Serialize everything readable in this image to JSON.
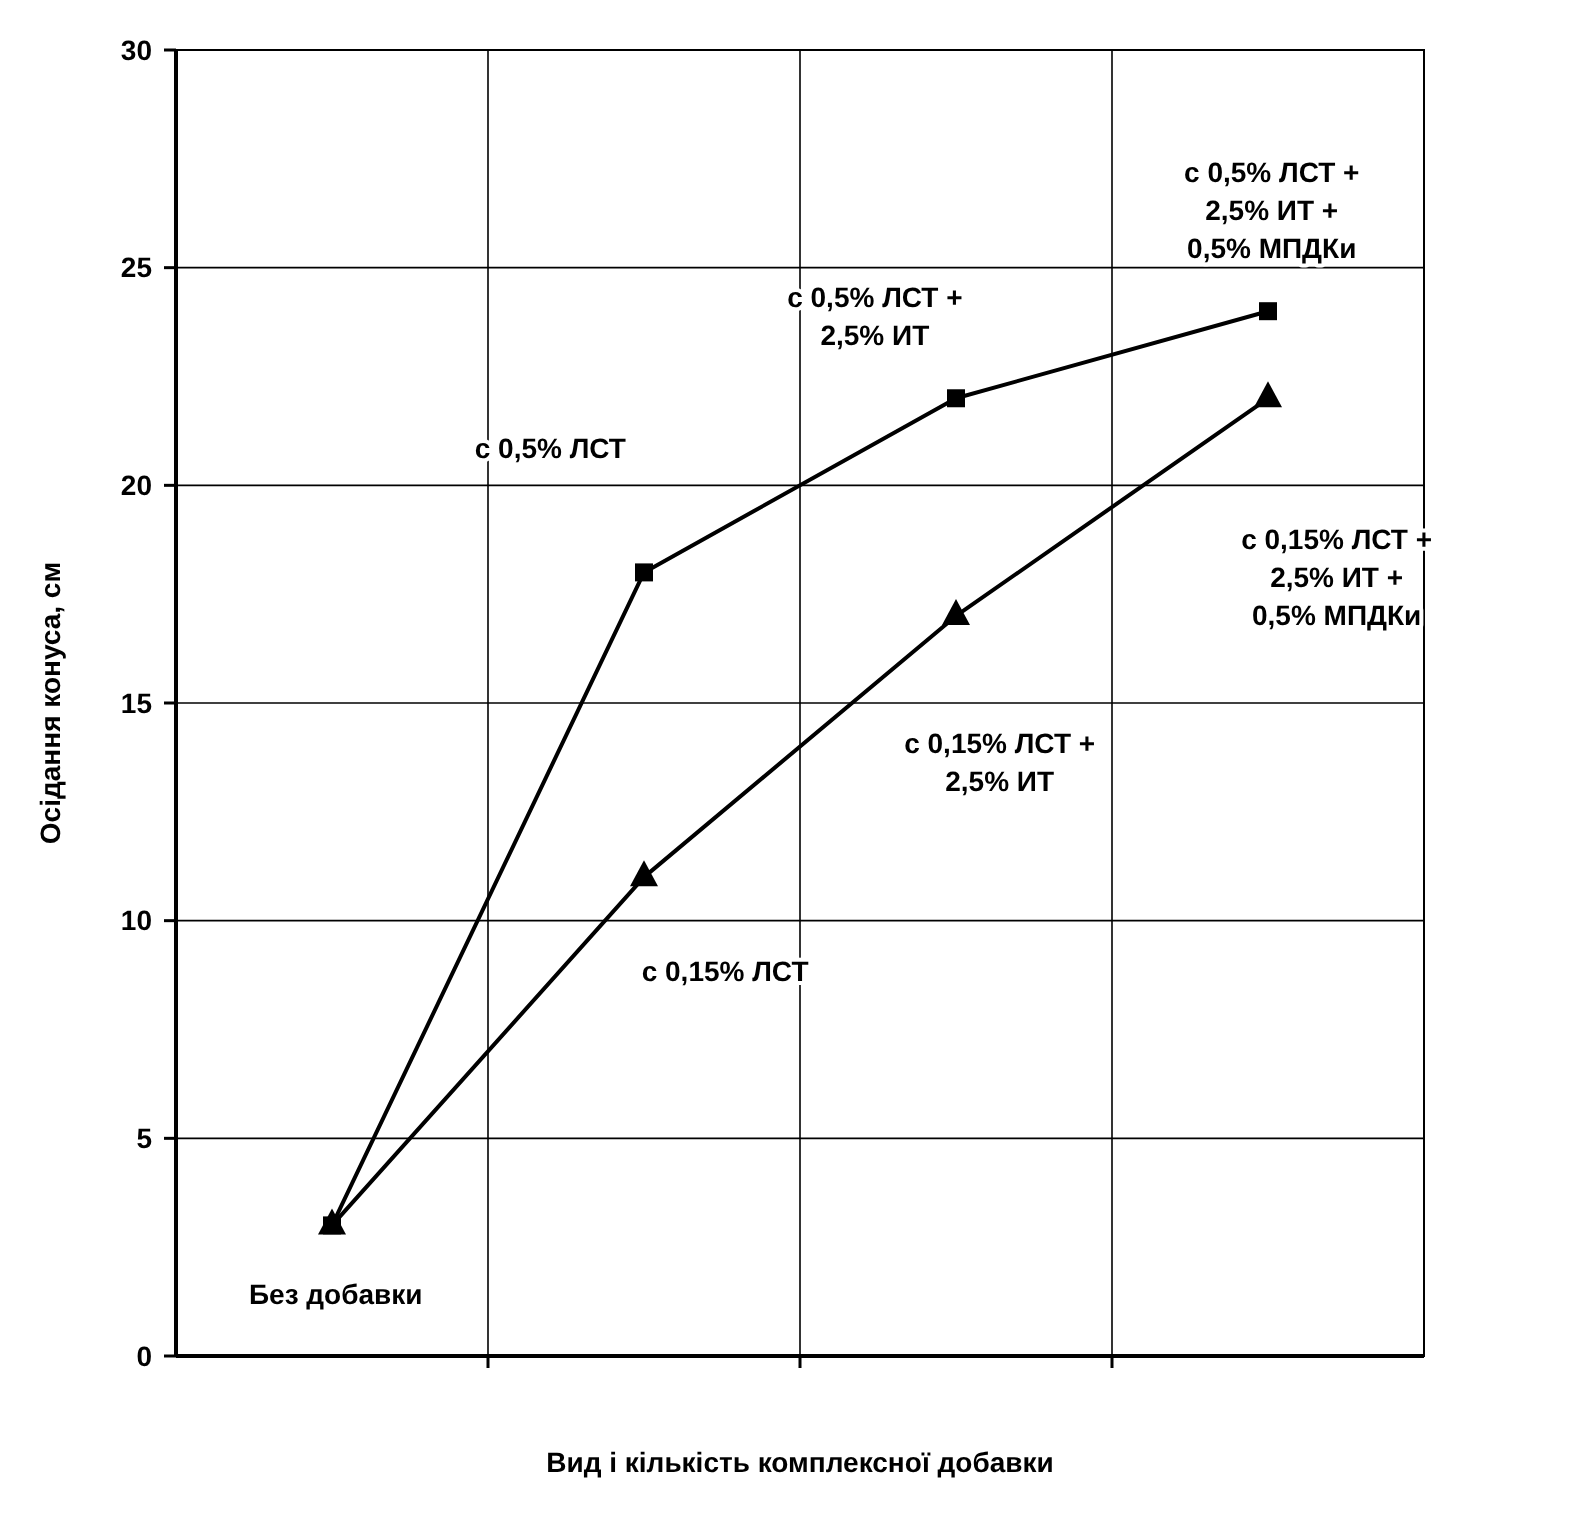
{
  "chart_data": {
    "type": "line",
    "xlabel": "Вид і кількість комплексної добавки",
    "ylabel": "Осідання конуса, см",
    "categories": [
      null,
      null,
      null,
      null
    ],
    "series": [
      {
        "color": "#000000",
        "marker": "square",
        "values": [
          3,
          18,
          22,
          24
        ]
      },
      {
        "color": "#000000",
        "marker": "triangle",
        "values": [
          3,
          11,
          17,
          22
        ]
      }
    ],
    "ylim": [
      0,
      30
    ],
    "yticks": [
      0,
      5,
      10,
      15,
      20,
      25,
      30
    ],
    "grid": true,
    "line_style": "solid",
    "annotations": [
      "Без добавки",
      "с 0,5% ЛСТ",
      "с 0,15% ЛСТ",
      "с 0,5% ЛСТ +\n2,5% ИТ",
      "с 0,15% ЛСТ +\n2,5% ИТ",
      "с 0,5% ЛСТ +\n2,5% ИТ +\n0,5% МПДКи",
      "с 0,15% ЛСТ +\n2,5% ИТ +\n0,5% МПДКи"
    ]
  }
}
